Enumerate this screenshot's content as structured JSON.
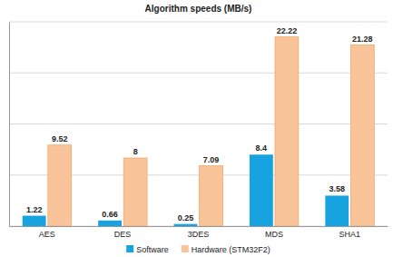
{
  "chart_data": {
    "type": "bar",
    "title": "Algorithm speeds (MB/s)",
    "categories": [
      "AES",
      "DES",
      "3DES",
      "MDS",
      "SHA1"
    ],
    "series": [
      {
        "name": "Software",
        "color": "#17a2e0",
        "values": [
          1.22,
          0.66,
          0.25,
          8.4,
          3.58
        ]
      },
      {
        "name": "Hardware (STM32F2)",
        "color": "#f9c49a",
        "values": [
          9.52,
          8,
          7.09,
          22.22,
          21.28
        ]
      }
    ],
    "ylim": [
      0,
      24
    ],
    "yticks": [
      0,
      6,
      12,
      18,
      24
    ],
    "grid": true,
    "legend": "bottom",
    "data_labels": true,
    "tick_labels": "x"
  }
}
